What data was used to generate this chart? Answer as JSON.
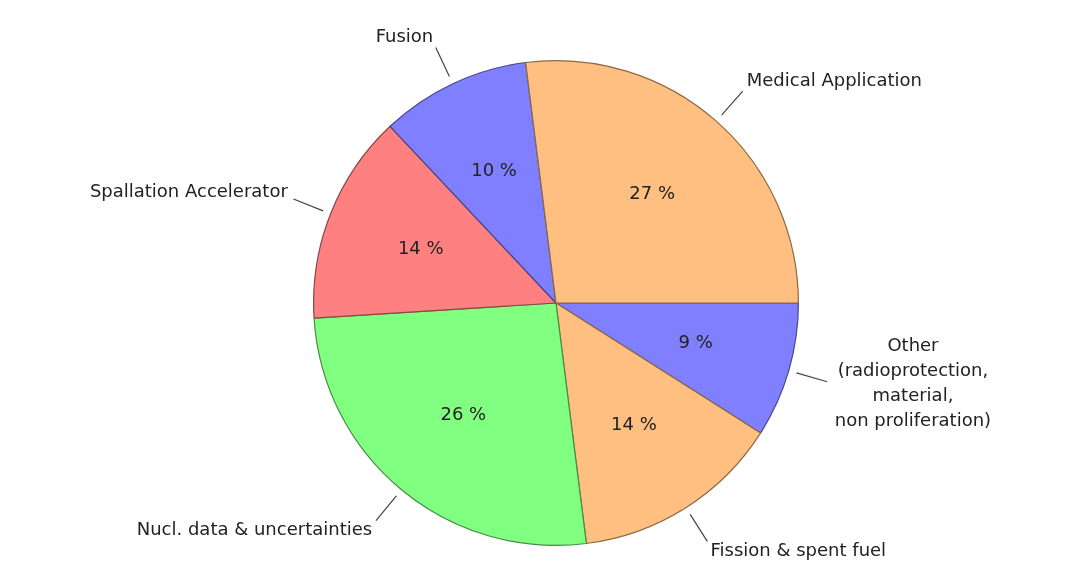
{
  "chart_data": {
    "type": "pie",
    "categories": [
      "Other (radioprotection, material, non proliferation)",
      "Fission & spent fuel",
      "Nucl. data & uncertainties",
      "Spallation Accelerator",
      "Fusion",
      "Medical Application"
    ],
    "values": [
      9,
      14,
      26,
      14,
      10,
      27
    ],
    "colors": [
      "#7f7fff",
      "#ffbf80",
      "#80ff80",
      "#ff8080",
      "#7f7fff",
      "#ffbf80"
    ],
    "value_labels": [
      "9 %",
      "14 %",
      "26 %",
      "14 %",
      "10 %",
      "27 %"
    ],
    "legend": false
  }
}
